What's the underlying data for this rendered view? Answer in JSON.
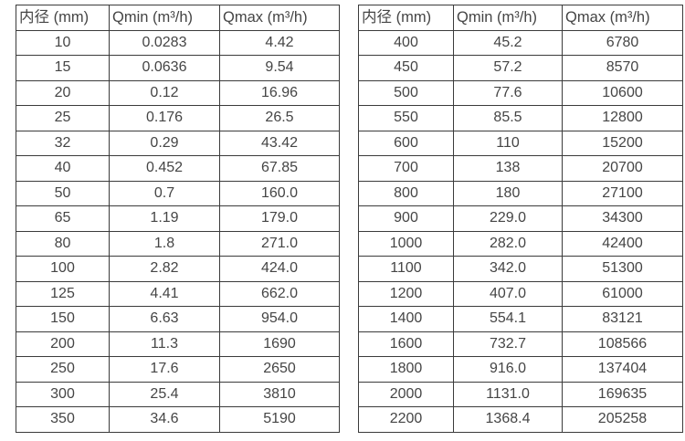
{
  "colors": {
    "background": "#ffffff",
    "table_border": "#3b3b3b",
    "text": "#454545"
  },
  "chart_data": [
    {
      "type": "table",
      "title": "",
      "columns": [
        "内径 (mm)",
        "Qmin (m³/h)",
        "Qmax (m³/h)"
      ],
      "rows": [
        [
          "10",
          "0.0283",
          "4.42"
        ],
        [
          "15",
          "0.0636",
          "9.54"
        ],
        [
          "20",
          "0.12",
          "16.96"
        ],
        [
          "25",
          "0.176",
          "26.5"
        ],
        [
          "32",
          "0.29",
          "43.42"
        ],
        [
          "40",
          "0.452",
          "67.85"
        ],
        [
          "50",
          "0.7",
          "160.0"
        ],
        [
          "65",
          "1.19",
          "179.0"
        ],
        [
          "80",
          "1.8",
          "271.0"
        ],
        [
          "100",
          "2.82",
          "424.0"
        ],
        [
          "125",
          "4.41",
          "662.0"
        ],
        [
          "150",
          "6.63",
          "954.0"
        ],
        [
          "200",
          "11.3",
          "1690"
        ],
        [
          "250",
          "17.6",
          "2650"
        ],
        [
          "300",
          "25.4",
          "3810"
        ],
        [
          "350",
          "34.6",
          "5190"
        ]
      ]
    },
    {
      "type": "table",
      "title": "",
      "columns": [
        "内径 (mm)",
        "Qmin (m³/h)",
        "Qmax (m³/h)"
      ],
      "rows": [
        [
          "400",
          "45.2",
          "6780"
        ],
        [
          "450",
          "57.2",
          "8570"
        ],
        [
          "500",
          "77.6",
          "10600"
        ],
        [
          "550",
          "85.5",
          "12800"
        ],
        [
          "600",
          "110",
          "15200"
        ],
        [
          "700",
          "138",
          "20700"
        ],
        [
          "800",
          "180",
          "27100"
        ],
        [
          "900",
          "229.0",
          "34300"
        ],
        [
          "1000",
          "282.0",
          "42400"
        ],
        [
          "1100",
          "342.0",
          "51300"
        ],
        [
          "1200",
          "407.0",
          "61000"
        ],
        [
          "1400",
          "554.1",
          "83121"
        ],
        [
          "1600",
          "732.7",
          "108566"
        ],
        [
          "1800",
          "916.0",
          "137404"
        ],
        [
          "2000",
          "1131.0",
          "169635"
        ],
        [
          "2200",
          "1368.4",
          "205258"
        ]
      ]
    }
  ]
}
